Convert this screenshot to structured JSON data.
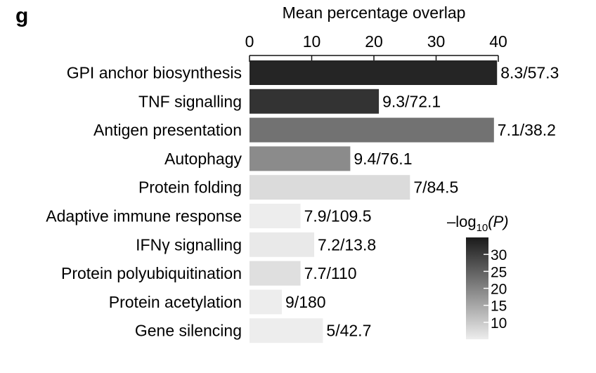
{
  "panel_label": "g",
  "chart_data": {
    "type": "bar",
    "orientation": "horizontal",
    "title": "",
    "xlabel": "Mean percentage overlap",
    "xlim": [
      0,
      40
    ],
    "x_ticks": [
      "0",
      "10",
      "20",
      "30",
      "40"
    ],
    "x_axis_position": "top",
    "grid": false,
    "categories": [
      "GPI anchor biosynthesis",
      "TNF signalling",
      "Antigen presentation",
      "Autophagy",
      "Protein folding",
      "Adaptive immune response",
      "IFNγ signalling",
      "Protein polyubiquitination",
      "Protein acetylation",
      "Gene silencing"
    ],
    "values": [
      39.8,
      20.8,
      39.3,
      16.2,
      25.8,
      8.2,
      10.4,
      8.2,
      5.2,
      11.8
    ],
    "color_values": [
      33.5,
      31.5,
      22.5,
      19,
      7.5,
      5,
      5.5,
      7,
      3.5,
      2.5
    ],
    "data_labels": [
      "8.3/57.3",
      "9.3/72.1",
      "7.1/38.2",
      "9.4/76.1",
      "7/84.5",
      "7.9/109.5",
      "7.2/13.8",
      "7.7/110",
      "9/180",
      "5/42.7"
    ],
    "colorbar": {
      "title": "–log10(P)",
      "title_main": "–log",
      "title_sub": "10",
      "title_var": "(P)",
      "range": [
        5,
        35
      ],
      "ticks": [
        "10",
        "15",
        "20",
        "25",
        "30"
      ],
      "tick_values": [
        10,
        15,
        20,
        25,
        30
      ],
      "color_low": "#ededed",
      "color_high": "#1a1a1a",
      "placement": "bottom-right"
    }
  }
}
